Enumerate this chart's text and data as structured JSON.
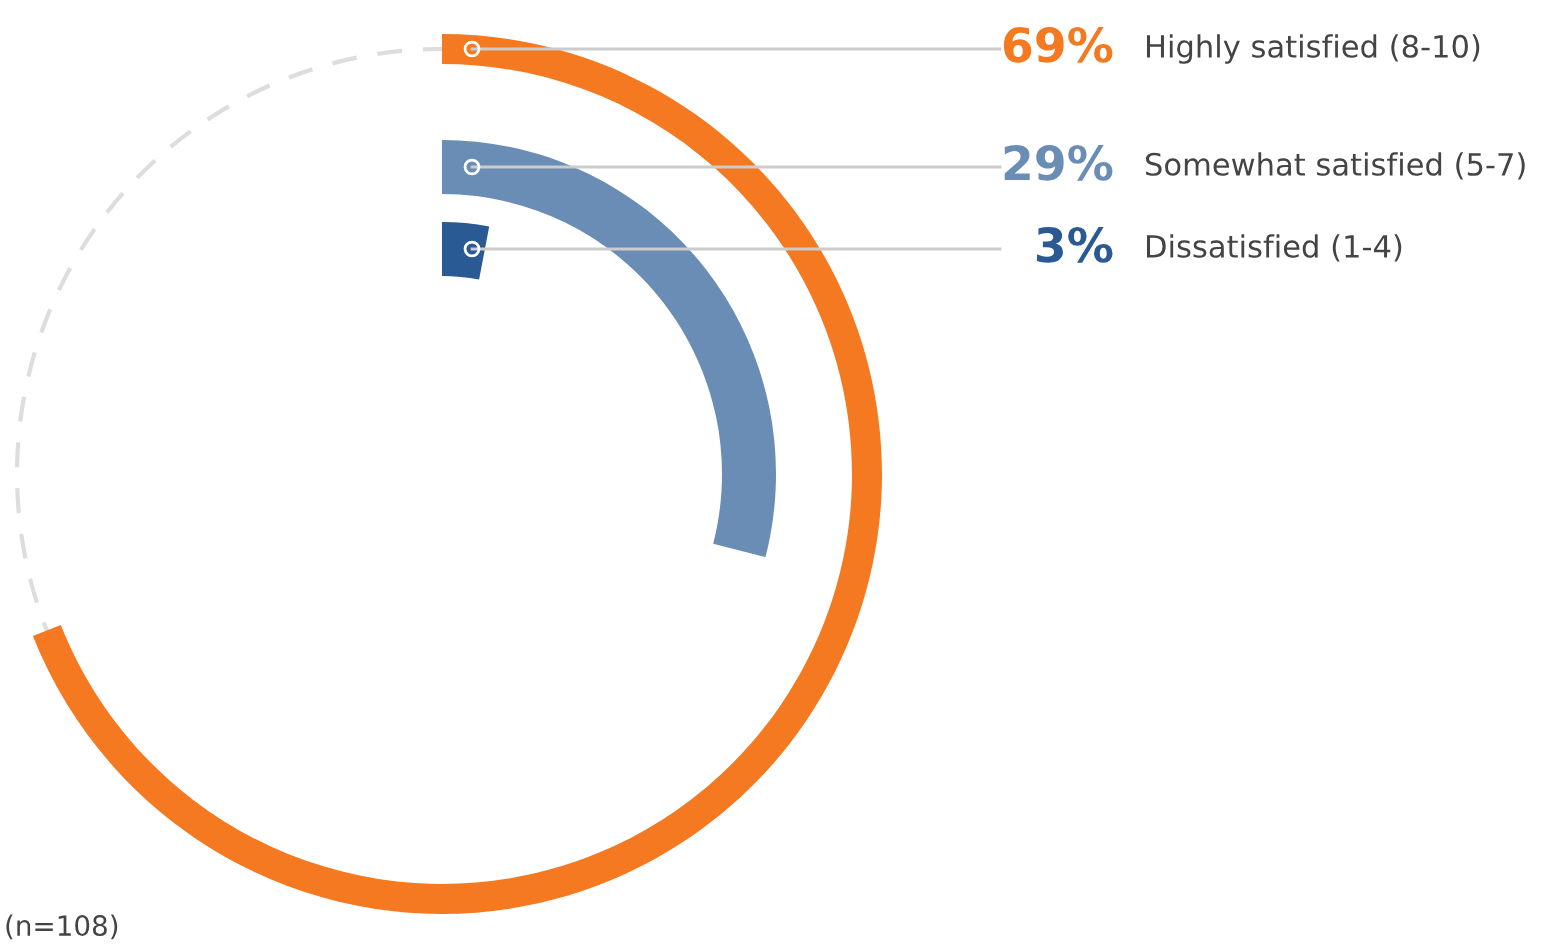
{
  "chart_data": {
    "type": "other",
    "categories": [
      "Highly satisfied (8-10)",
      "Somewhat satisfied (5-7)",
      "Dissatisfied (1-4)"
    ],
    "values": [
      69,
      29,
      3
    ],
    "value_labels": [
      "69%",
      "29%",
      "3%"
    ],
    "colors": [
      "#f47920",
      "#6a8db5",
      "#2a5a94"
    ],
    "annotations": [
      "(n=108)"
    ]
  }
}
